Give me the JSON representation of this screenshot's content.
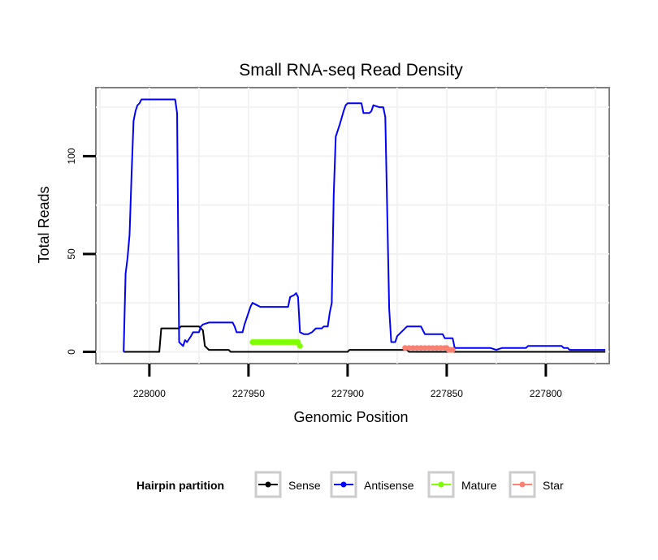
{
  "chart_data": {
    "type": "line",
    "title": "Small RNA-seq Read Density",
    "xlabel": "Genomic Position",
    "ylabel": "Total Reads",
    "x_reversed": true,
    "xlim": [
      228027,
      227768
    ],
    "ylim": [
      -6,
      135
    ],
    "xticks": [
      228000,
      227950,
      227900,
      227850,
      227800
    ],
    "xtick_labels": [
      "228000",
      "227950",
      "227900",
      "227850",
      "227800"
    ],
    "yticks": [
      0,
      50,
      100
    ],
    "ytick_labels": [
      "0",
      "50",
      "100"
    ],
    "legend": {
      "title": "Hairpin partition",
      "position": "bottom",
      "entries": [
        {
          "label": "Sense",
          "color": "#000000"
        },
        {
          "label": "Antisense",
          "color": "#0000ff"
        },
        {
          "label": "Mature",
          "color": "#7fff00"
        },
        {
          "label": "Star",
          "color": "#fa8072"
        }
      ]
    },
    "series": [
      {
        "name": "Sense",
        "color": "#000000",
        "style": "line",
        "points": [
          [
            228013,
            0
          ],
          [
            227995,
            0
          ],
          [
            227994,
            12
          ],
          [
            227985,
            12
          ],
          [
            227984,
            13
          ],
          [
            227975,
            13
          ],
          [
            227973,
            11
          ],
          [
            227972,
            3
          ],
          [
            227970,
            1
          ],
          [
            227960,
            1
          ],
          [
            227959,
            0
          ],
          [
            227900,
            0
          ],
          [
            227899,
            1
          ],
          [
            227870,
            1
          ],
          [
            227869,
            0
          ],
          [
            227770,
            0
          ]
        ]
      },
      {
        "name": "Antisense",
        "color": "#0000ff",
        "style": "line",
        "points": [
          [
            228013,
            0
          ],
          [
            228012,
            40
          ],
          [
            228011,
            48
          ],
          [
            228010,
            60
          ],
          [
            228009,
            90
          ],
          [
            228008,
            118
          ],
          [
            228007,
            123
          ],
          [
            228006,
            126
          ],
          [
            228005,
            127
          ],
          [
            228004,
            129
          ],
          [
            227987,
            129
          ],
          [
            227986,
            122
          ],
          [
            227985,
            5
          ],
          [
            227984,
            4
          ],
          [
            227983,
            3
          ],
          [
            227982,
            6
          ],
          [
            227981,
            5
          ],
          [
            227979,
            8
          ],
          [
            227978,
            10
          ],
          [
            227975,
            10
          ],
          [
            227974,
            13
          ],
          [
            227973,
            14
          ],
          [
            227970,
            15
          ],
          [
            227958,
            15
          ],
          [
            227957,
            13
          ],
          [
            227956,
            10
          ],
          [
            227953,
            10
          ],
          [
            227952,
            14
          ],
          [
            227950,
            20
          ],
          [
            227949,
            23
          ],
          [
            227948,
            25
          ],
          [
            227946,
            24
          ],
          [
            227944,
            23
          ],
          [
            227930,
            23
          ],
          [
            227929,
            28
          ],
          [
            227927,
            29
          ],
          [
            227926,
            30
          ],
          [
            227925,
            28
          ],
          [
            227924,
            10
          ],
          [
            227922,
            9
          ],
          [
            227920,
            9
          ],
          [
            227918,
            10
          ],
          [
            227917,
            11
          ],
          [
            227916,
            12
          ],
          [
            227913,
            12
          ],
          [
            227912,
            13
          ],
          [
            227910,
            13
          ],
          [
            227909,
            20
          ],
          [
            227908,
            25
          ],
          [
            227907,
            80
          ],
          [
            227906,
            110
          ],
          [
            227904,
            116
          ],
          [
            227902,
            123
          ],
          [
            227901,
            126
          ],
          [
            227900,
            127
          ],
          [
            227893,
            127
          ],
          [
            227892,
            122
          ],
          [
            227889,
            122
          ],
          [
            227888,
            123
          ],
          [
            227887,
            126
          ],
          [
            227884,
            125
          ],
          [
            227882,
            125
          ],
          [
            227881,
            120
          ],
          [
            227879,
            22
          ],
          [
            227878,
            5
          ],
          [
            227876,
            5
          ],
          [
            227875,
            8
          ],
          [
            227870,
            13
          ],
          [
            227863,
            13
          ],
          [
            227862,
            11
          ],
          [
            227861,
            9
          ],
          [
            227856,
            9
          ],
          [
            227852,
            9
          ],
          [
            227851,
            7
          ],
          [
            227847,
            7
          ],
          [
            227846,
            2
          ],
          [
            227830,
            2
          ],
          [
            227828,
            2
          ],
          [
            227825,
            1
          ],
          [
            227822,
            2
          ],
          [
            227810,
            2
          ],
          [
            227809,
            3
          ],
          [
            227792,
            3
          ],
          [
            227791,
            2
          ],
          [
            227789,
            2
          ],
          [
            227788,
            1
          ],
          [
            227770,
            1
          ]
        ]
      },
      {
        "name": "Mature",
        "color": "#7fff00",
        "style": "points",
        "points": [
          [
            227948,
            5
          ],
          [
            227947,
            5
          ],
          [
            227946,
            5
          ],
          [
            227945,
            5
          ],
          [
            227944,
            5
          ],
          [
            227943,
            5
          ],
          [
            227942,
            5
          ],
          [
            227941,
            5
          ],
          [
            227940,
            5
          ],
          [
            227939,
            5
          ],
          [
            227938,
            5
          ],
          [
            227937,
            5
          ],
          [
            227936,
            5
          ],
          [
            227935,
            5
          ],
          [
            227934,
            5
          ],
          [
            227933,
            5
          ],
          [
            227932,
            5
          ],
          [
            227931,
            5
          ],
          [
            227930,
            5
          ],
          [
            227929,
            5
          ],
          [
            227928,
            5
          ],
          [
            227927,
            5
          ],
          [
            227926,
            5
          ],
          [
            227925,
            5
          ],
          [
            227924,
            3
          ]
        ]
      },
      {
        "name": "Star",
        "color": "#fa8072",
        "style": "points",
        "points": [
          [
            227871,
            2
          ],
          [
            227869,
            2
          ],
          [
            227867,
            2
          ],
          [
            227865,
            2
          ],
          [
            227863,
            2
          ],
          [
            227861,
            2
          ],
          [
            227859,
            2
          ],
          [
            227857,
            2
          ],
          [
            227855,
            2
          ],
          [
            227853,
            2
          ],
          [
            227851,
            2
          ],
          [
            227850,
            2
          ],
          [
            227849,
            1
          ],
          [
            227848,
            1
          ],
          [
            227847,
            1
          ]
        ]
      }
    ]
  }
}
